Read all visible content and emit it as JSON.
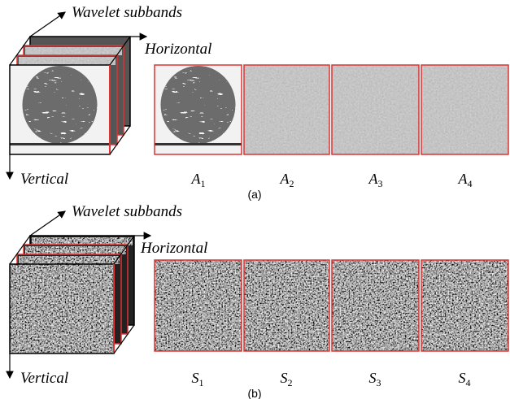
{
  "panels": [
    {
      "axis_depth": "Wavelet subbands",
      "axis_horizontal": "Horizontal",
      "axis_vertical": "Vertical",
      "caption": "(a)",
      "subbands": [
        {
          "symbol": "A",
          "subscript": "1"
        },
        {
          "symbol": "A",
          "subscript": "2"
        },
        {
          "symbol": "A",
          "subscript": "3"
        },
        {
          "symbol": "A",
          "subscript": "4"
        }
      ]
    },
    {
      "axis_depth": "Wavelet subbands",
      "axis_horizontal": "Horizontal",
      "axis_vertical": "Vertical",
      "caption": "(b)",
      "subbands": [
        {
          "symbol": "S",
          "subscript": "1"
        },
        {
          "symbol": "S",
          "subscript": "2"
        },
        {
          "symbol": "S",
          "subscript": "3"
        },
        {
          "symbol": "S",
          "subscript": "4"
        }
      ]
    }
  ]
}
